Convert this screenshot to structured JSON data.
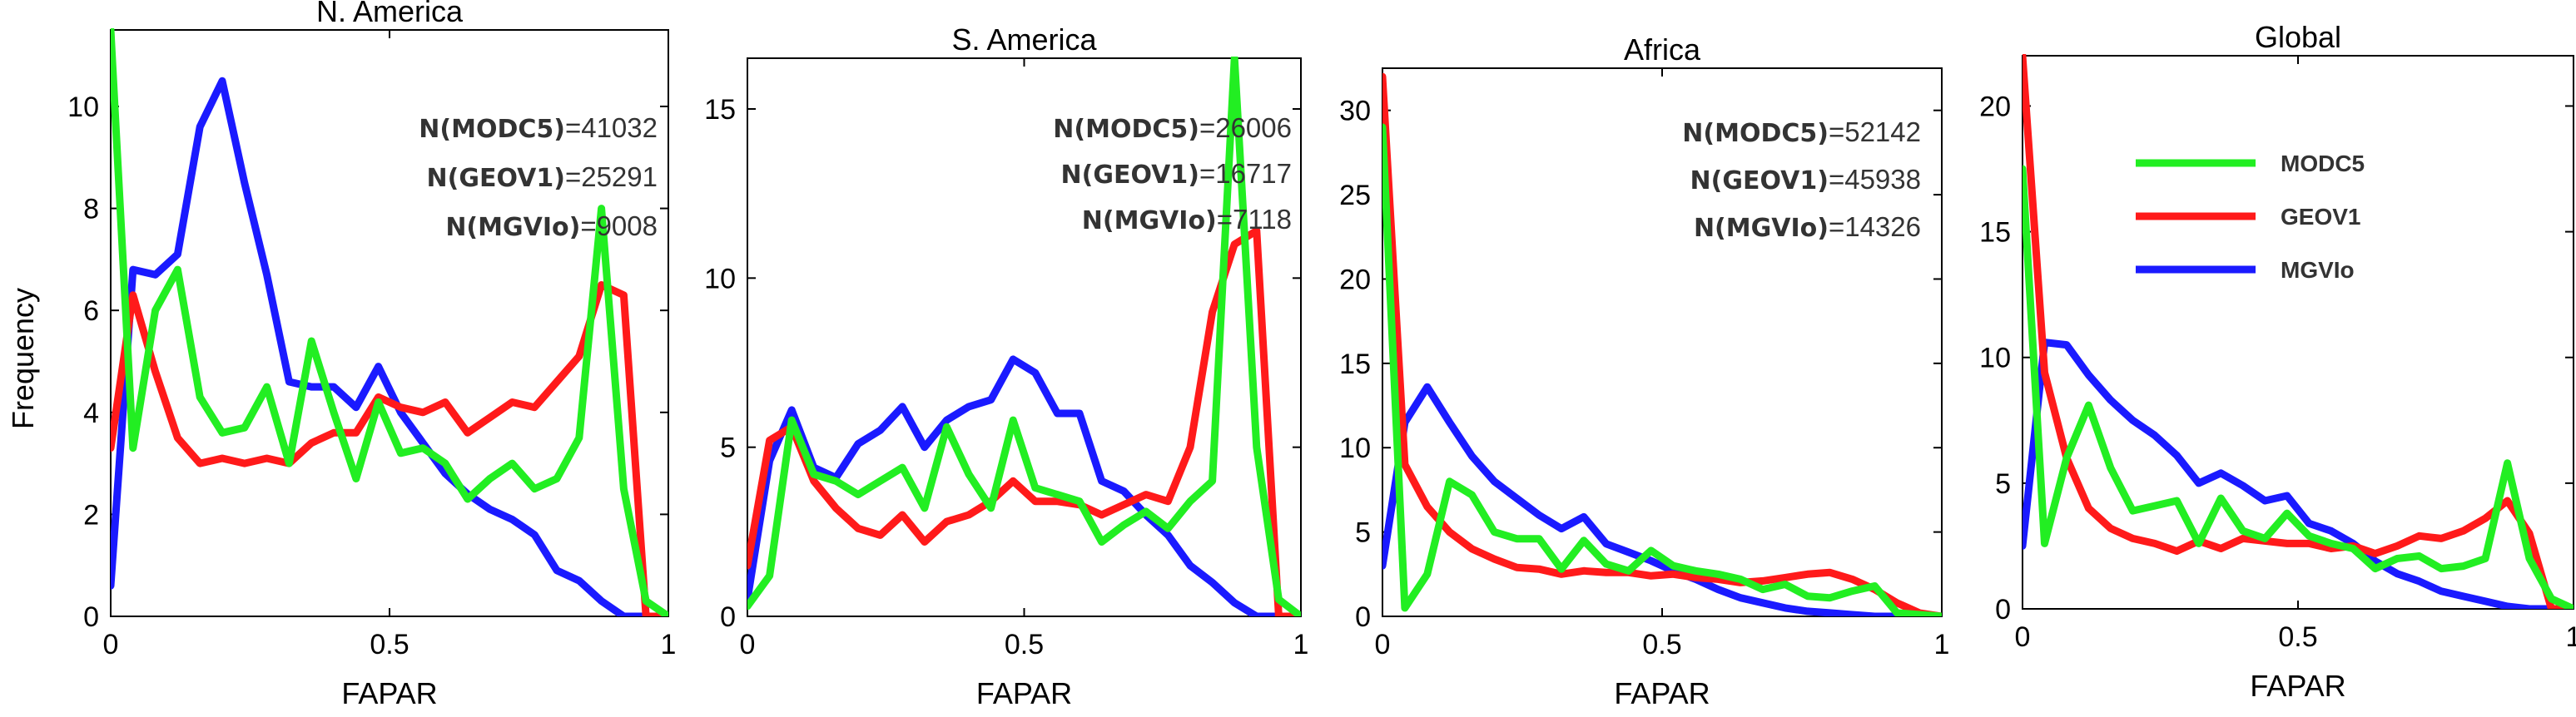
{
  "figure": {
    "ylabel": "Frequency",
    "colors": {
      "MODC5": "#22ee22",
      "GEOV1": "#ff1a1a",
      "MGVIo": "#1a1aff"
    }
  },
  "chart_data": [
    {
      "type": "line",
      "title": "N. America",
      "xlabel": "FAPAR",
      "ylabel": "Frequency",
      "xlim": [
        0,
        1
      ],
      "ylim": [
        0,
        11.5
      ],
      "xticks": [
        "0",
        "0.5",
        "1"
      ],
      "yticks": [
        "0",
        "2",
        "4",
        "6",
        "8",
        "10"
      ],
      "ytick_values": [
        0,
        2,
        4,
        6,
        8,
        10
      ],
      "counts": [
        {
          "label": "N(MODC5)",
          "value": "=41032"
        },
        {
          "label": "N(GEOV1)",
          "value": "=25291"
        },
        {
          "label": "N(MGVIo)",
          "value": "=9008"
        }
      ],
      "x": [
        0.0,
        0.04,
        0.08,
        0.12,
        0.16,
        0.2,
        0.24,
        0.28,
        0.32,
        0.36,
        0.4,
        0.44,
        0.48,
        0.52,
        0.56,
        0.6,
        0.64,
        0.68,
        0.72,
        0.76,
        0.8,
        0.84,
        0.88,
        0.92,
        0.96,
        1.0
      ],
      "series": [
        {
          "name": "MODC5",
          "values": [
            11.5,
            3.3,
            6.0,
            6.8,
            4.3,
            3.6,
            3.7,
            4.5,
            3.0,
            5.4,
            4.0,
            2.7,
            4.2,
            3.2,
            3.3,
            3.0,
            2.3,
            2.7,
            3.0,
            2.5,
            2.7,
            3.5,
            8.0,
            2.5,
            0.3,
            0.0
          ]
        },
        {
          "name": "GEOV1",
          "values": [
            3.3,
            6.3,
            4.8,
            3.5,
            3.0,
            3.1,
            3.0,
            3.1,
            3.0,
            3.4,
            3.6,
            3.6,
            4.3,
            4.1,
            4.0,
            4.2,
            3.6,
            3.9,
            4.2,
            4.1,
            4.6,
            5.1,
            6.5,
            6.3,
            0.0,
            0.0
          ]
        },
        {
          "name": "MGVIo",
          "values": [
            0.6,
            6.8,
            6.7,
            7.1,
            9.6,
            10.5,
            8.5,
            6.7,
            4.6,
            4.5,
            4.5,
            4.1,
            4.9,
            4.0,
            3.4,
            2.8,
            2.4,
            2.1,
            1.9,
            1.6,
            0.9,
            0.7,
            0.3,
            0.0,
            0.0,
            0.0
          ]
        }
      ]
    },
    {
      "type": "line",
      "title": "S. America",
      "xlabel": "FAPAR",
      "ylabel": "",
      "xlim": [
        0,
        1
      ],
      "ylim": [
        0,
        16.5
      ],
      "xticks": [
        "0",
        "0.5",
        "1"
      ],
      "yticks": [
        "0",
        "5",
        "10",
        "15"
      ],
      "ytick_values": [
        0,
        5,
        10,
        15
      ],
      "counts": [
        {
          "label": "N(MODC5)",
          "value": "=26006"
        },
        {
          "label": "N(GEOV1)",
          "value": "=16717"
        },
        {
          "label": "N(MGVIo)",
          "value": "=7118"
        }
      ],
      "x": [
        0.0,
        0.04,
        0.08,
        0.12,
        0.16,
        0.2,
        0.24,
        0.28,
        0.32,
        0.36,
        0.4,
        0.44,
        0.48,
        0.52,
        0.56,
        0.6,
        0.64,
        0.68,
        0.72,
        0.76,
        0.8,
        0.84,
        0.88,
        0.92,
        0.96,
        1.0
      ],
      "series": [
        {
          "name": "MODC5",
          "values": [
            0.3,
            1.2,
            5.8,
            4.2,
            4.0,
            3.6,
            4.0,
            4.4,
            3.2,
            5.6,
            4.2,
            3.2,
            5.8,
            3.8,
            3.6,
            3.4,
            2.2,
            2.7,
            3.1,
            2.6,
            3.4,
            4.0,
            17.0,
            5.0,
            0.5,
            0.0
          ]
        },
        {
          "name": "GEOV1",
          "values": [
            1.5,
            5.2,
            5.6,
            4.0,
            3.2,
            2.6,
            2.4,
            3.0,
            2.2,
            2.8,
            3.0,
            3.4,
            4.0,
            3.4,
            3.4,
            3.3,
            3.0,
            3.3,
            3.6,
            3.4,
            5.0,
            9.0,
            11.0,
            11.4,
            0.0,
            0.0
          ]
        },
        {
          "name": "MGVIo",
          "values": [
            0.5,
            4.6,
            6.1,
            4.4,
            4.1,
            5.1,
            5.5,
            6.2,
            5.0,
            5.8,
            6.2,
            6.4,
            7.6,
            7.2,
            6.0,
            6.0,
            4.0,
            3.7,
            3.0,
            2.4,
            1.5,
            1.0,
            0.4,
            0.0,
            0.0,
            0.0
          ]
        }
      ]
    },
    {
      "type": "line",
      "title": "Africa",
      "xlabel": "FAPAR",
      "ylabel": "",
      "xlim": [
        0,
        1
      ],
      "ylim": [
        0,
        32.5
      ],
      "xticks": [
        "0",
        "0.5",
        "1"
      ],
      "yticks": [
        "0",
        "5",
        "10",
        "15",
        "20",
        "25",
        "30"
      ],
      "ytick_values": [
        0,
        5,
        10,
        15,
        20,
        25,
        30
      ],
      "counts": [
        {
          "label": "N(MODC5)",
          "value": "=52142"
        },
        {
          "label": "N(GEOV1)",
          "value": "=45938"
        },
        {
          "label": "N(MGVIo)",
          "value": "=14326"
        }
      ],
      "x": [
        0.0,
        0.04,
        0.08,
        0.12,
        0.16,
        0.2,
        0.24,
        0.28,
        0.32,
        0.36,
        0.4,
        0.44,
        0.48,
        0.52,
        0.56,
        0.6,
        0.64,
        0.68,
        0.72,
        0.76,
        0.8,
        0.84,
        0.88,
        0.92,
        0.96,
        1.0
      ],
      "series": [
        {
          "name": "MODC5",
          "values": [
            29.0,
            0.5,
            2.5,
            8.0,
            7.2,
            5.0,
            4.6,
            4.6,
            2.8,
            4.5,
            3.1,
            2.7,
            3.9,
            3.0,
            2.7,
            2.5,
            2.2,
            1.6,
            1.9,
            1.2,
            1.1,
            1.5,
            1.8,
            0.2,
            0.1,
            0.0
          ]
        },
        {
          "name": "GEOV1",
          "values": [
            32.0,
            9.0,
            6.5,
            5.0,
            4.0,
            3.4,
            2.9,
            2.8,
            2.5,
            2.7,
            2.6,
            2.6,
            2.4,
            2.5,
            2.3,
            2.2,
            2.0,
            2.1,
            2.3,
            2.5,
            2.6,
            2.2,
            1.6,
            0.8,
            0.2,
            0.0
          ]
        },
        {
          "name": "MGVIo",
          "values": [
            3.0,
            11.5,
            13.6,
            11.5,
            9.5,
            8.0,
            7.0,
            6.0,
            5.2,
            5.9,
            4.3,
            3.8,
            3.3,
            2.7,
            2.2,
            1.6,
            1.1,
            0.8,
            0.5,
            0.3,
            0.2,
            0.1,
            0.0,
            0.0,
            0.0,
            0.0
          ]
        }
      ]
    },
    {
      "type": "line",
      "title": "Global",
      "xlabel": "FAPAR",
      "ylabel": "",
      "xlim": [
        0,
        1
      ],
      "ylim": [
        0,
        22
      ],
      "xticks": [
        "0",
        "0.5",
        "1"
      ],
      "yticks": [
        "0",
        "5",
        "10",
        "15",
        "20"
      ],
      "ytick_values": [
        0,
        5,
        10,
        15,
        20
      ],
      "legend": {
        "position": "top-right",
        "entries": [
          "MODC5",
          "GEOV1",
          "MGVIo"
        ]
      },
      "x": [
        0.0,
        0.04,
        0.08,
        0.12,
        0.16,
        0.2,
        0.24,
        0.28,
        0.32,
        0.36,
        0.4,
        0.44,
        0.48,
        0.52,
        0.56,
        0.6,
        0.64,
        0.68,
        0.72,
        0.76,
        0.8,
        0.84,
        0.88,
        0.92,
        0.96,
        1.0
      ],
      "series": [
        {
          "name": "MODC5",
          "values": [
            17.5,
            2.6,
            6.0,
            8.1,
            5.6,
            3.9,
            4.1,
            4.3,
            2.6,
            4.4,
            3.1,
            2.8,
            3.8,
            2.9,
            2.6,
            2.4,
            1.6,
            2.0,
            2.1,
            1.6,
            1.7,
            2.0,
            5.8,
            2.0,
            0.4,
            0.0
          ]
        },
        {
          "name": "GEOV1",
          "values": [
            22.0,
            9.4,
            6.0,
            4.0,
            3.2,
            2.8,
            2.6,
            2.3,
            2.7,
            2.4,
            2.8,
            2.7,
            2.6,
            2.6,
            2.4,
            2.5,
            2.2,
            2.5,
            2.9,
            2.8,
            3.1,
            3.6,
            4.3,
            3.0,
            0.0,
            0.0
          ]
        },
        {
          "name": "MGVIo",
          "values": [
            2.5,
            10.6,
            10.5,
            9.3,
            8.3,
            7.5,
            6.9,
            6.1,
            5.0,
            5.4,
            4.9,
            4.3,
            4.5,
            3.4,
            3.1,
            2.6,
            1.9,
            1.4,
            1.1,
            0.7,
            0.5,
            0.3,
            0.1,
            0.0,
            0.0,
            0.0
          ]
        }
      ]
    }
  ]
}
